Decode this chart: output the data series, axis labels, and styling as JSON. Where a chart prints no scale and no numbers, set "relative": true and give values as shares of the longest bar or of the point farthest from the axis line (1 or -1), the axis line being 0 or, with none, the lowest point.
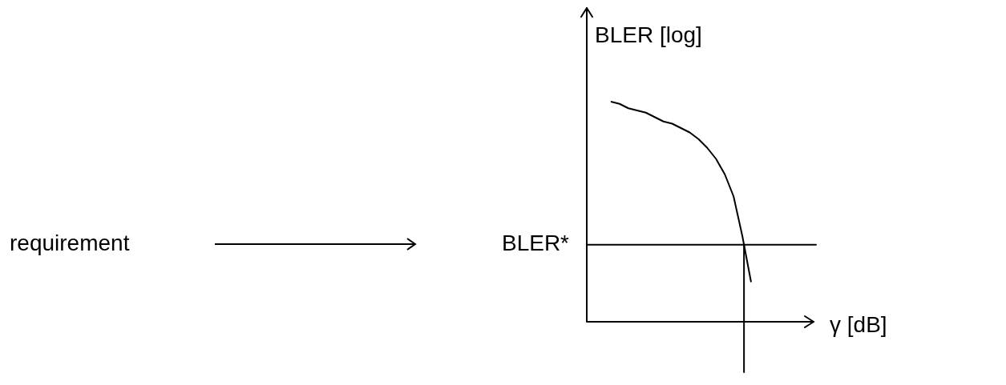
{
  "chart_data": {
    "type": "line",
    "relative": true,
    "xlabel": "γ [dB]",
    "ylabel": "BLER [log]",
    "marker": "none",
    "line_style": "solid",
    "categories": [
      null,
      null,
      null,
      null,
      null,
      null,
      null,
      null,
      null,
      null,
      null,
      null,
      null,
      null,
      null,
      null,
      null
    ],
    "series": [
      {
        "color": "#000000",
        "values": [
          1.0,
          0.99,
          0.97,
          0.96,
          0.95,
          0.93,
          0.91,
          0.9,
          0.88,
          0.86,
          0.83,
          0.79,
          0.74,
          0.67,
          0.57,
          0.39,
          0.18
        ]
      }
    ],
    "ref_lines": [
      {
        "axis": "y",
        "value": 0.35,
        "label": "BLER*",
        "color": "#000000"
      }
    ],
    "annotations": [
      "requirement"
    ]
  }
}
